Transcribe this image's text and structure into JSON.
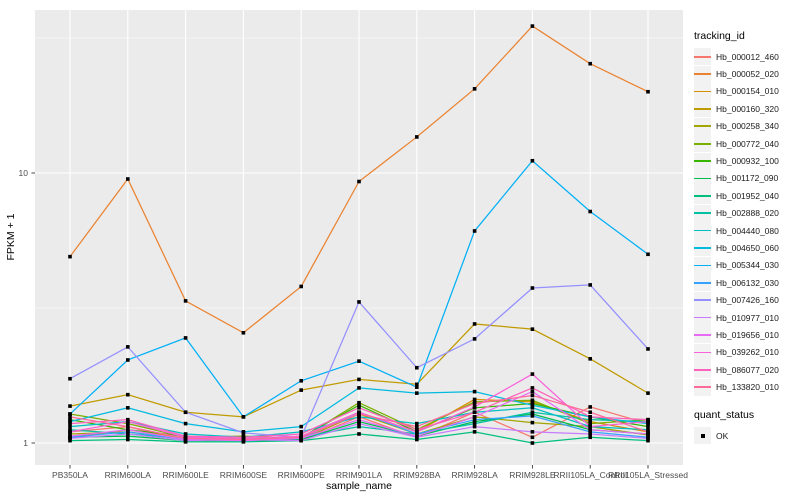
{
  "chart_data": {
    "type": "line",
    "title": "",
    "xlabel": "sample_name",
    "ylabel": "FPKM + 1",
    "yscale": "log10",
    "ylim": [
      0.83,
      40
    ],
    "y_major_ticks": [
      1,
      10
    ],
    "y_tick_labels": [
      "1",
      "10"
    ],
    "grid": "major white on grey panel, log minor gridlines",
    "legend_position": "right",
    "categories": [
      "PB350LA",
      "RRIM600LA",
      "RRIM600LE",
      "RRIM600SE",
      "RRIM600PE",
      "RRIM901LA",
      "RRIM928BA",
      "RRIM928LA",
      "RRIM928LE",
      "RRII105LA_Control",
      "RRII105LA_Stressed"
    ],
    "series": [
      {
        "name": "Hb_000012_460",
        "color": "#F8766D",
        "values": [
          1.1,
          1.15,
          1.02,
          1.03,
          1.02,
          1.25,
          1.05,
          1.3,
          1.05,
          1.36,
          1.18
        ]
      },
      {
        "name": "Hb_000052_020",
        "color": "#EA8331",
        "values": [
          4.9,
          9.5,
          3.36,
          2.56,
          3.8,
          9.3,
          13.6,
          20.5,
          35.0,
          25.4,
          20.0
        ]
      },
      {
        "name": "Hb_000154_010",
        "color": "#D89000",
        "values": [
          1.05,
          1.12,
          1.04,
          1.02,
          1.06,
          1.3,
          1.1,
          1.45,
          1.42,
          1.2,
          1.1
        ]
      },
      {
        "name": "Hb_000160_320",
        "color": "#C09B00",
        "values": [
          1.37,
          1.51,
          1.3,
          1.25,
          1.57,
          1.72,
          1.65,
          2.76,
          2.64,
          2.05,
          1.53
        ]
      },
      {
        "name": "Hb_000258_340",
        "color": "#A3A500",
        "values": [
          1.08,
          1.1,
          1.03,
          1.04,
          1.03,
          1.28,
          1.08,
          1.25,
          1.19,
          1.15,
          1.07
        ]
      },
      {
        "name": "Hb_000772_040",
        "color": "#7CAE00",
        "values": [
          1.28,
          1.18,
          1.05,
          1.06,
          1.04,
          1.41,
          1.12,
          1.42,
          1.44,
          1.18,
          1.22
        ]
      },
      {
        "name": "Hb_000932_100",
        "color": "#39B600",
        "values": [
          1.22,
          1.12,
          1.06,
          1.03,
          1.05,
          1.38,
          1.1,
          1.35,
          1.4,
          1.25,
          1.15
        ]
      },
      {
        "name": "Hb_001172_090",
        "color": "#00BB4E",
        "values": [
          1.05,
          1.06,
          1.02,
          1.02,
          1.03,
          1.2,
          1.06,
          1.2,
          1.28,
          1.12,
          1.08
        ]
      },
      {
        "name": "Hb_001952_040",
        "color": "#00BF7D",
        "values": [
          1.02,
          1.03,
          1.01,
          1.01,
          1.02,
          1.08,
          1.03,
          1.1,
          1.0,
          1.05,
          1.02
        ]
      },
      {
        "name": "Hb_002888_020",
        "color": "#00C1A3",
        "values": [
          1.12,
          1.08,
          1.04,
          1.03,
          1.05,
          1.15,
          1.08,
          1.18,
          1.3,
          1.22,
          1.2
        ]
      },
      {
        "name": "Hb_004440_080",
        "color": "#00BFC4",
        "values": [
          1.15,
          1.2,
          1.08,
          1.05,
          1.1,
          1.25,
          1.18,
          1.3,
          1.35,
          1.15,
          1.12
        ]
      },
      {
        "name": "Hb_004650_060",
        "color": "#00BAE0",
        "values": [
          1.2,
          1.35,
          1.18,
          1.1,
          1.15,
          1.6,
          1.53,
          1.55,
          1.38,
          1.25,
          1.18
        ]
      },
      {
        "name": "Hb_005344_030",
        "color": "#00B0F6",
        "values": [
          1.28,
          2.03,
          2.45,
          1.25,
          1.7,
          2.01,
          1.61,
          6.1,
          11.1,
          7.2,
          5.0
        ]
      },
      {
        "name": "Hb_006132_030",
        "color": "#35A2FF",
        "values": [
          1.05,
          1.1,
          1.03,
          1.02,
          1.04,
          1.3,
          1.08,
          1.22,
          1.26,
          1.1,
          1.05
        ]
      },
      {
        "name": "Hb_007426_160",
        "color": "#9590FF",
        "values": [
          1.73,
          2.27,
          1.3,
          1.09,
          1.05,
          3.33,
          1.9,
          2.43,
          3.75,
          3.85,
          2.23
        ]
      },
      {
        "name": "Hb_010977_010",
        "color": "#C77CFF",
        "values": [
          1.04,
          1.08,
          1.02,
          1.03,
          1.02,
          1.18,
          1.05,
          1.15,
          1.1,
          1.08,
          1.04
        ]
      },
      {
        "name": "Hb_019656_010",
        "color": "#E76BF3",
        "values": [
          1.06,
          1.12,
          1.03,
          1.02,
          1.04,
          1.22,
          1.06,
          1.25,
          1.55,
          1.12,
          1.08
        ]
      },
      {
        "name": "Hb_039262_010",
        "color": "#FA62DB",
        "values": [
          1.1,
          1.2,
          1.05,
          1.04,
          1.06,
          1.3,
          1.1,
          1.36,
          1.8,
          1.15,
          1.2
        ]
      },
      {
        "name": "Hb_086077_020",
        "color": "#FF62BC",
        "values": [
          1.18,
          1.22,
          1.06,
          1.05,
          1.08,
          1.35,
          1.12,
          1.3,
          1.6,
          1.25,
          1.22
        ]
      },
      {
        "name": "Hb_133820_010",
        "color": "#FF6A98",
        "values": [
          1.25,
          1.15,
          1.04,
          1.03,
          1.05,
          1.28,
          1.15,
          1.4,
          1.5,
          1.3,
          1.1
        ]
      }
    ]
  },
  "legend": {
    "tracking_title": "tracking_id",
    "quant_title": "quant_status",
    "quant_label": "OK"
  },
  "colors": {
    "panel_background": "#EBEBEB",
    "gridline": "#FFFFFF",
    "axis_text": "#4D4D4D",
    "tick_mark": "#333333",
    "point": "#000000",
    "legend_key_background": "#F2F2F2"
  }
}
